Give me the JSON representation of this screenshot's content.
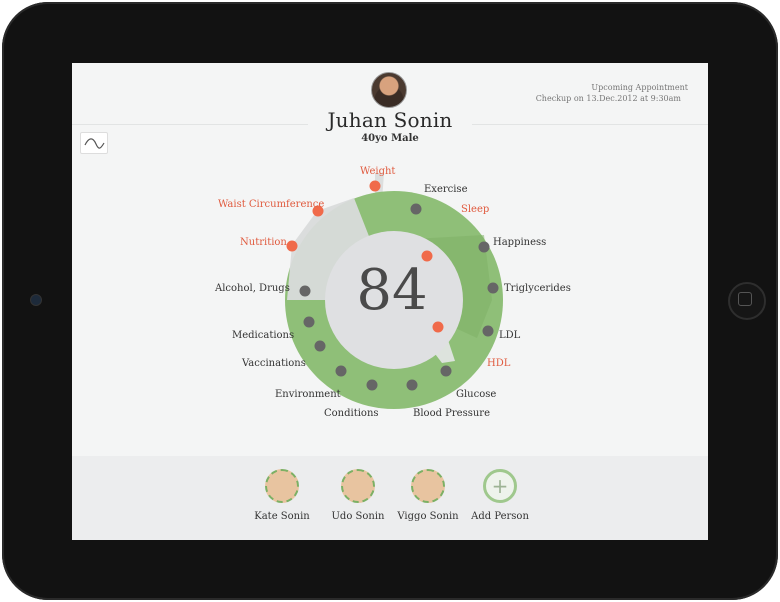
{
  "header": {
    "name": "Juhan Sonin",
    "subtitle": "40yo Male",
    "appointment_title": "Upcoming Appointment",
    "appointment_detail": "Checkup on 13.Dec.2012 at 9:30am"
  },
  "score": "84",
  "metrics": {
    "weight": "Weight",
    "exercise": "Exercise",
    "sleep": "Sleep",
    "waist": "Waist Circumference",
    "happiness": "Happiness",
    "nutrition": "Nutrition",
    "triglycerides": "Triglycerides",
    "alcohol": "Alcohol, Drugs",
    "medications": "Medications",
    "ldl": "LDL",
    "vaccinations": "Vaccinations",
    "hdl": "HDL",
    "environment": "Environment",
    "glucose": "Glucose",
    "conditions": "Conditions",
    "blood_pressure": "Blood Pressure"
  },
  "family": [
    {
      "name": "Kate Sonin"
    },
    {
      "name": "Udo Sonin"
    },
    {
      "name": "Viggo Sonin"
    }
  ],
  "add_person": "Add Person",
  "colors": {
    "ring_green": "#8fbf78",
    "alert": "#f06a4a",
    "marker": "#666666"
  },
  "icons": {
    "trend": "trend-line-icon",
    "add": "plus-icon"
  }
}
